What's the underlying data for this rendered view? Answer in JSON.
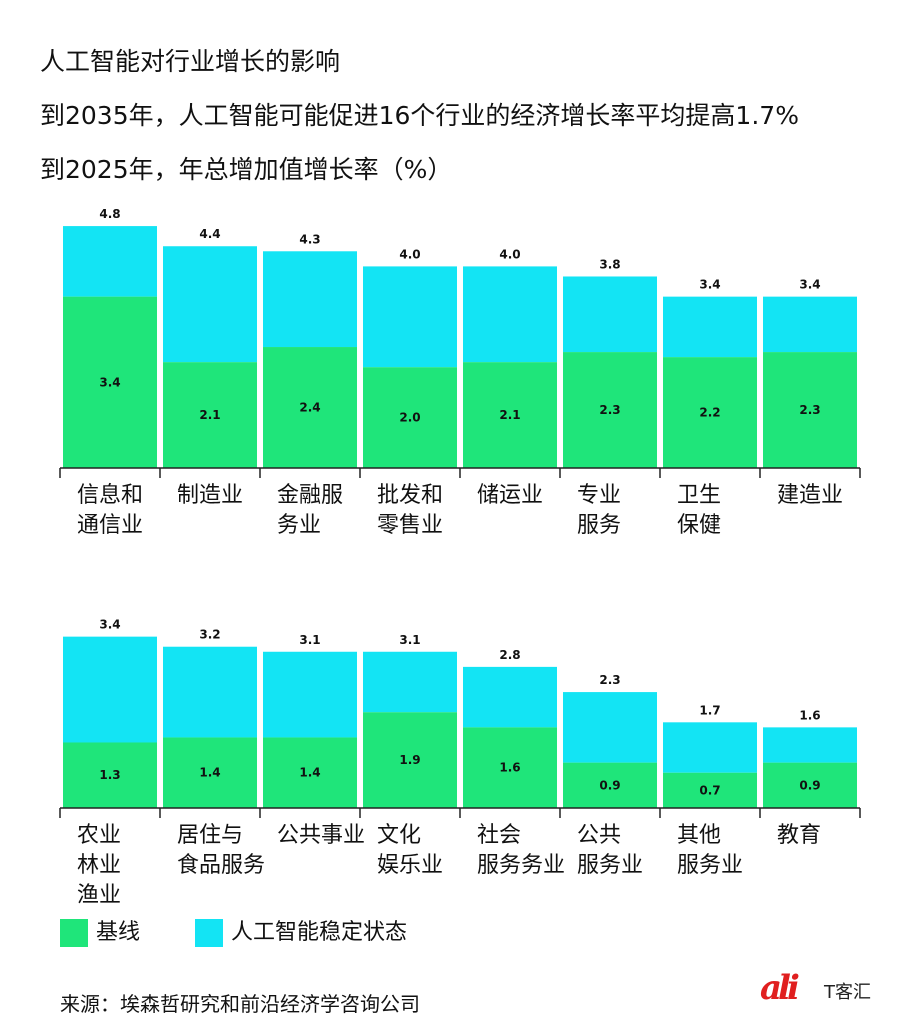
{
  "header": {
    "title": "人工智能对行业增长的影响",
    "subtitle": "到2035年，人工智能可能促进16个行业的经济增长率平均提高1.7%",
    "subtitle2": "到2025年，年总增加值增长率（%）"
  },
  "colors": {
    "baseline": "#1fe57a",
    "ai": "#13e4f4",
    "axis": "#222222"
  },
  "chart_data": [
    {
      "type": "bar",
      "stacked": true,
      "categories": [
        "信息和\n通信业",
        "制造业",
        "金融服\n务业",
        "批发和\n零售业",
        "储运业",
        "专业\n服务",
        "卫生\n保健",
        "建造业"
      ],
      "series": [
        {
          "name": "基线",
          "values": [
            3.4,
            2.1,
            2.4,
            2.0,
            2.1,
            2.3,
            2.2,
            2.3
          ]
        },
        {
          "name": "人工智能稳定状态",
          "values": [
            1.4,
            2.3,
            1.9,
            2.0,
            1.9,
            1.5,
            1.2,
            1.1
          ]
        }
      ],
      "bar_labels": {
        "baseline": [
          "3.4",
          "2.1",
          "2.4",
          "2.0",
          "2.1",
          "2.3",
          "2.2",
          "2.3"
        ],
        "total": [
          "4.8",
          "4.4",
          "4.3",
          "4.0",
          "4.0",
          "3.8",
          "3.4",
          "3.4"
        ]
      },
      "ylim": [
        0,
        5.2
      ],
      "grid": false,
      "legend": "bottom-left"
    },
    {
      "type": "bar",
      "stacked": true,
      "categories": [
        "农业\n林业\n渔业",
        "居住与\n食品服务",
        "公共事业",
        "文化\n娱乐业",
        "社会\n服务务业",
        "公共\n服务业",
        "其他\n服务业",
        "教育"
      ],
      "series": [
        {
          "name": "基线",
          "values": [
            1.3,
            1.4,
            1.4,
            1.9,
            1.6,
            0.9,
            0.7,
            0.9
          ]
        },
        {
          "name": "人工智能稳定状态",
          "values": [
            2.1,
            1.8,
            1.7,
            1.2,
            1.2,
            1.4,
            1.0,
            0.7
          ]
        }
      ],
      "bar_labels": {
        "baseline": [
          "1.3",
          "1.4",
          "1.4",
          "1.9",
          "1.6",
          "0.9",
          "0.7",
          "0.9"
        ],
        "total": [
          "3.4",
          "3.2",
          "3.1",
          "3.1",
          "2.8",
          "2.3",
          "1.7",
          "1.6"
        ]
      },
      "ylim": [
        0,
        3.7
      ],
      "grid": false,
      "legend": "bottom-left"
    }
  ],
  "legend": {
    "baseline": "基线",
    "ai": "人工智能稳定状态"
  },
  "source": "来源：埃森哲研究和前沿经济学咨询公司",
  "watermark": {
    "logo": "ali",
    "text": "T客汇"
  }
}
